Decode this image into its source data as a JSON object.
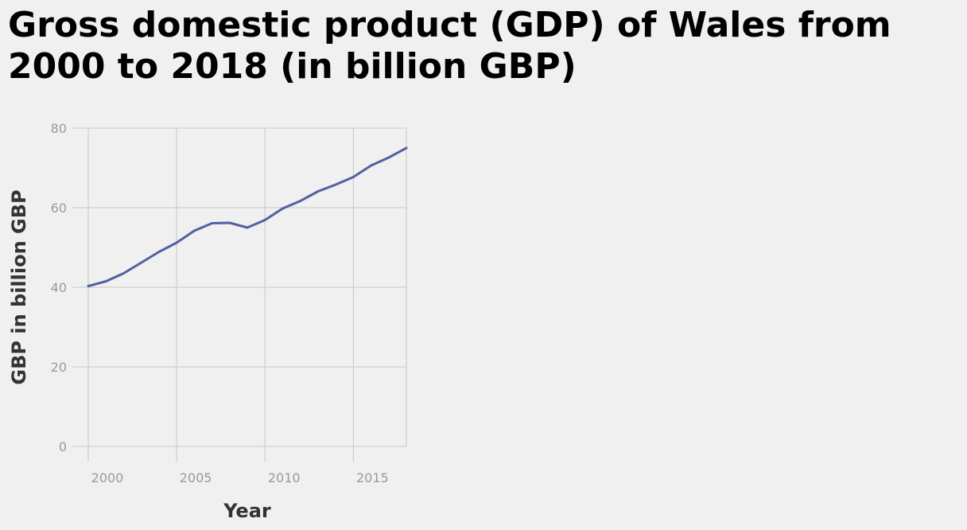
{
  "title_lines": [
    "Gross domestic product (GDP) of Wales from",
    "2000 to 2018 (in billion GBP)"
  ],
  "chart_data": {
    "type": "line",
    "title": "Gross domestic product (GDP) of Wales from 2000 to 2018 (in billion GBP)",
    "xlabel": "Year",
    "ylabel": "GBP in billion GBP",
    "xlim": [
      2000,
      2018
    ],
    "ylim": [
      0,
      80
    ],
    "x_ticks": [
      2000,
      2005,
      2010,
      2015
    ],
    "y_ticks": [
      0,
      20,
      40,
      60,
      80
    ],
    "grid": true,
    "legend": "none",
    "series": [
      {
        "color": "#5360a0",
        "x": [
          2000,
          2001,
          2002,
          2003,
          2004,
          2005,
          2006,
          2007,
          2008,
          2009,
          2010,
          2011,
          2012,
          2013,
          2014,
          2015,
          2016,
          2017,
          2018
        ],
        "y": [
          40.3,
          41.5,
          43.5,
          46.2,
          48.9,
          51.2,
          54.2,
          56.1,
          56.2,
          55.0,
          56.9,
          59.8,
          61.7,
          64.1,
          65.8,
          67.7,
          70.6,
          72.6,
          75.0
        ]
      }
    ]
  }
}
